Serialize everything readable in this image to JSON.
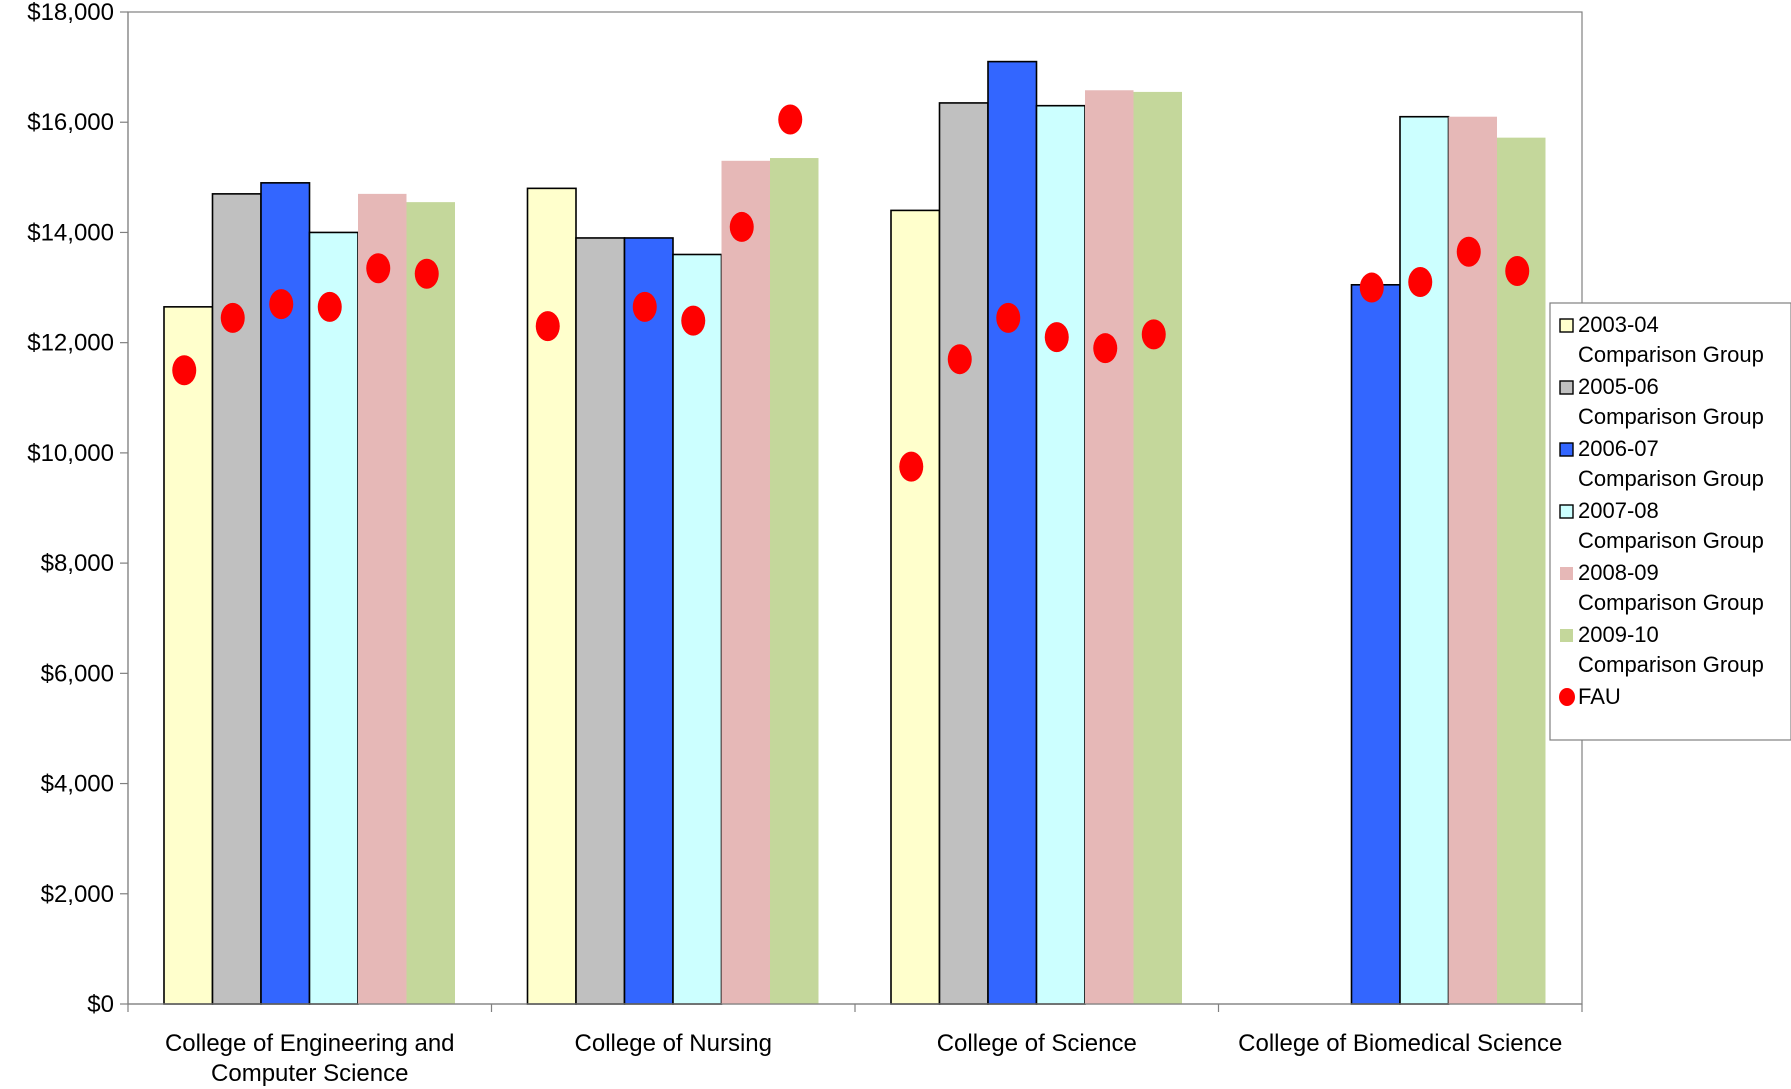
{
  "chart_data": {
    "type": "bar",
    "title": "",
    "xlabel": "",
    "ylabel": "",
    "ylim": [
      0,
      18000
    ],
    "y_ticks": [
      "$0",
      "$2,000",
      "$4,000",
      "$6,000",
      "$8,000",
      "$10,000",
      "$12,000",
      "$14,000",
      "$16,000",
      "$18,000"
    ],
    "y_tick_values": [
      0,
      2000,
      4000,
      6000,
      8000,
      10000,
      12000,
      14000,
      16000,
      18000
    ],
    "categories": [
      [
        "College of Engineering and",
        "Computer Science"
      ],
      [
        "College of Nursing"
      ],
      [
        "College of Science"
      ],
      [
        "College of Biomedical Science"
      ]
    ],
    "series": [
      {
        "name": "2003-04 Comparison Group",
        "legend_lines": [
          "2003-04",
          "Comparison Group"
        ],
        "color": "#FFFFCC",
        "outline": true,
        "values": [
          12650,
          14800,
          14400,
          null
        ]
      },
      {
        "name": "2005-06 Comparison Group",
        "legend_lines": [
          "2005-06",
          "Comparison Group"
        ],
        "color": "#C0C0C0",
        "outline": true,
        "values": [
          14700,
          13900,
          16350,
          null
        ]
      },
      {
        "name": "2006-07 Comparison Group",
        "legend_lines": [
          "2006-07",
          "Comparison Group"
        ],
        "color": "#3366FF",
        "outline": true,
        "values": [
          14900,
          13900,
          17100,
          13050
        ]
      },
      {
        "name": "2007-08 Comparison Group",
        "legend_lines": [
          "2007-08",
          "Comparison Group"
        ],
        "color": "#CCFFFF",
        "outline": true,
        "values": [
          14000,
          13600,
          16300,
          16100
        ]
      },
      {
        "name": "2008-09 Comparison Group",
        "legend_lines": [
          "2008-09",
          "Comparison Group"
        ],
        "color": "#E6B8B7",
        "outline": false,
        "values": [
          14700,
          15300,
          16580,
          16100
        ]
      },
      {
        "name": "2009-10 Comparison Group",
        "legend_lines": [
          "2009-10",
          "Comparison Group"
        ],
        "color": "#C4D79B",
        "outline": false,
        "values": [
          14550,
          15350,
          16550,
          15720
        ]
      }
    ],
    "markers": {
      "name": "FAU",
      "color": "#FF0000",
      "values": [
        [
          11500,
          12450,
          12700,
          12650,
          13350,
          13250
        ],
        [
          12300,
          null,
          12650,
          12400,
          14100,
          16050
        ],
        [
          9750,
          11700,
          12450,
          12100,
          11900,
          12150
        ],
        [
          null,
          null,
          13000,
          13100,
          13650,
          13300
        ]
      ]
    },
    "legend_position": "right",
    "grid": false
  }
}
